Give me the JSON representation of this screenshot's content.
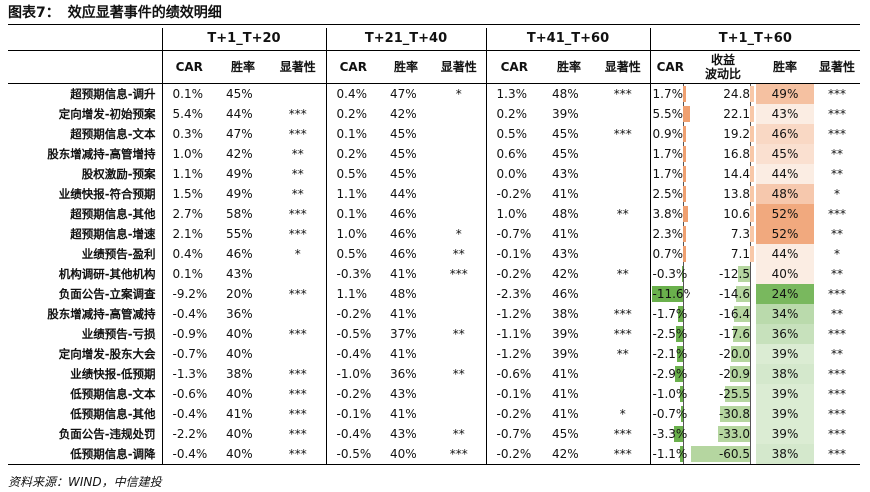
{
  "title": {
    "label": "图表7：",
    "text": "效应显著事件的绩效明细"
  },
  "source": "资料来源：WIND，中信建投",
  "groups": [
    "T+1_T+20",
    "T+21_T+40",
    "T+41_T+60",
    "T+1_T+60"
  ],
  "subheaders": {
    "car": "CAR",
    "win": "胜率",
    "sig": "显著性",
    "vol": "收益\n波动比"
  },
  "colors": {
    "pos_bar": "#f0a070",
    "neg_bar": "#6ab04c",
    "win_high": "#f0a070",
    "win_low": "#6ab04c"
  },
  "rows": [
    {
      "name": "超预期信息-调升",
      "g1": [
        "0.1%",
        "45%",
        ""
      ],
      "g2": [
        "0.4%",
        "47%",
        "*"
      ],
      "g3": [
        "1.3%",
        "48%",
        "***"
      ],
      "g4": {
        "car": "1.7%",
        "car_v": 1.7,
        "vol": "24.8",
        "vol_v": 24.8,
        "win": "49%",
        "win_v": 49,
        "sig": "***"
      }
    },
    {
      "name": "定向增发-初始预案",
      "g1": [
        "5.4%",
        "44%",
        "***"
      ],
      "g2": [
        "0.2%",
        "42%",
        ""
      ],
      "g3": [
        "0.2%",
        "39%",
        ""
      ],
      "g4": {
        "car": "5.5%",
        "car_v": 5.5,
        "vol": "22.1",
        "vol_v": 22.1,
        "win": "43%",
        "win_v": 43,
        "sig": "***"
      }
    },
    {
      "name": "超预期信息-文本",
      "g1": [
        "0.3%",
        "47%",
        "***"
      ],
      "g2": [
        "0.1%",
        "45%",
        ""
      ],
      "g3": [
        "0.5%",
        "45%",
        "***"
      ],
      "g4": {
        "car": "0.9%",
        "car_v": 0.9,
        "vol": "19.2",
        "vol_v": 19.2,
        "win": "46%",
        "win_v": 46,
        "sig": "***"
      }
    },
    {
      "name": "股东增减持-高管增持",
      "g1": [
        "1.0%",
        "42%",
        "**"
      ],
      "g2": [
        "0.2%",
        "45%",
        ""
      ],
      "g3": [
        "0.6%",
        "45%",
        ""
      ],
      "g4": {
        "car": "1.7%",
        "car_v": 1.7,
        "vol": "16.8",
        "vol_v": 16.8,
        "win": "45%",
        "win_v": 45,
        "sig": "**"
      }
    },
    {
      "name": "股权激励-预案",
      "g1": [
        "1.1%",
        "49%",
        "**"
      ],
      "g2": [
        "0.5%",
        "45%",
        ""
      ],
      "g3": [
        "0.0%",
        "43%",
        ""
      ],
      "g4": {
        "car": "1.7%",
        "car_v": 1.7,
        "vol": "14.4",
        "vol_v": 14.4,
        "win": "44%",
        "win_v": 44,
        "sig": "**"
      }
    },
    {
      "name": "业绩快报-符合预期",
      "g1": [
        "1.5%",
        "49%",
        "**"
      ],
      "g2": [
        "1.1%",
        "44%",
        ""
      ],
      "g3": [
        "-0.2%",
        "41%",
        ""
      ],
      "g4": {
        "car": "2.5%",
        "car_v": 2.5,
        "vol": "13.8",
        "vol_v": 13.8,
        "win": "48%",
        "win_v": 48,
        "sig": "*"
      }
    },
    {
      "name": "超预期信息-其他",
      "g1": [
        "2.7%",
        "58%",
        "***"
      ],
      "g2": [
        "0.1%",
        "46%",
        ""
      ],
      "g3": [
        "1.0%",
        "48%",
        "**"
      ],
      "g4": {
        "car": "3.8%",
        "car_v": 3.8,
        "vol": "10.6",
        "vol_v": 10.6,
        "win": "52%",
        "win_v": 52,
        "sig": "***"
      }
    },
    {
      "name": "超预期信息-增速",
      "g1": [
        "2.1%",
        "55%",
        "***"
      ],
      "g2": [
        "1.0%",
        "46%",
        "*"
      ],
      "g3": [
        "-0.7%",
        "41%",
        ""
      ],
      "g4": {
        "car": "2.3%",
        "car_v": 2.3,
        "vol": "7.3",
        "vol_v": 7.3,
        "win": "52%",
        "win_v": 52,
        "sig": "**"
      }
    },
    {
      "name": "业绩预告-盈利",
      "g1": [
        "0.4%",
        "46%",
        "*"
      ],
      "g2": [
        "0.5%",
        "46%",
        "**"
      ],
      "g3": [
        "-0.1%",
        "43%",
        ""
      ],
      "g4": {
        "car": "0.7%",
        "car_v": 0.7,
        "vol": "7.1",
        "vol_v": 7.1,
        "win": "44%",
        "win_v": 44,
        "sig": "*"
      }
    },
    {
      "name": "机构调研-其他机构",
      "g1": [
        "0.1%",
        "43%",
        ""
      ],
      "g2": [
        "-0.3%",
        "41%",
        "***"
      ],
      "g3": [
        "-0.2%",
        "42%",
        "**"
      ],
      "g4": {
        "car": "-0.3%",
        "car_v": -0.3,
        "vol": "-12.5",
        "vol_v": -12.5,
        "win": "40%",
        "win_v": 40,
        "sig": "**"
      }
    },
    {
      "name": "负面公告-立案调查",
      "g1": [
        "-9.2%",
        "20%",
        "***"
      ],
      "g2": [
        "1.1%",
        "48%",
        ""
      ],
      "g3": [
        "-2.3%",
        "46%",
        ""
      ],
      "g4": {
        "car": "-11.6%",
        "car_v": -11.6,
        "vol": "-14.6",
        "vol_v": -14.6,
        "win": "24%",
        "win_v": 24,
        "sig": "***"
      }
    },
    {
      "name": "股东增减持-高管减持",
      "g1": [
        "-0.4%",
        "36%",
        ""
      ],
      "g2": [
        "-0.2%",
        "41%",
        ""
      ],
      "g3": [
        "-1.2%",
        "38%",
        "***"
      ],
      "g4": {
        "car": "-1.7%",
        "car_v": -1.7,
        "vol": "-16.4",
        "vol_v": -16.4,
        "win": "34%",
        "win_v": 34,
        "sig": "**"
      }
    },
    {
      "name": "业绩预告-亏损",
      "g1": [
        "-0.9%",
        "40%",
        "***"
      ],
      "g2": [
        "-0.5%",
        "37%",
        "**"
      ],
      "g3": [
        "-1.1%",
        "39%",
        "***"
      ],
      "g4": {
        "car": "-2.5%",
        "car_v": -2.5,
        "vol": "-17.6",
        "vol_v": -17.6,
        "win": "36%",
        "win_v": 36,
        "sig": "***"
      }
    },
    {
      "name": "定向增发-股东大会",
      "g1": [
        "-0.7%",
        "40%",
        ""
      ],
      "g2": [
        "-0.4%",
        "41%",
        ""
      ],
      "g3": [
        "-1.2%",
        "39%",
        "**"
      ],
      "g4": {
        "car": "-2.1%",
        "car_v": -2.1,
        "vol": "-20.0",
        "vol_v": -20.0,
        "win": "39%",
        "win_v": 39,
        "sig": "**"
      }
    },
    {
      "name": "业绩快报-低预期",
      "g1": [
        "-1.3%",
        "38%",
        "***"
      ],
      "g2": [
        "-1.0%",
        "36%",
        "**"
      ],
      "g3": [
        "-0.6%",
        "41%",
        ""
      ],
      "g4": {
        "car": "-2.9%",
        "car_v": -2.9,
        "vol": "-20.9",
        "vol_v": -20.9,
        "win": "38%",
        "win_v": 38,
        "sig": "***"
      }
    },
    {
      "name": "低预期信息-文本",
      "g1": [
        "-0.6%",
        "40%",
        "***"
      ],
      "g2": [
        "-0.2%",
        "43%",
        ""
      ],
      "g3": [
        "-0.1%",
        "41%",
        ""
      ],
      "g4": {
        "car": "-1.0%",
        "car_v": -1.0,
        "vol": "-25.5",
        "vol_v": -25.5,
        "win": "39%",
        "win_v": 39,
        "sig": "***"
      }
    },
    {
      "name": "低预期信息-其他",
      "g1": [
        "-0.4%",
        "41%",
        "***"
      ],
      "g2": [
        "-0.1%",
        "41%",
        ""
      ],
      "g3": [
        "-0.2%",
        "41%",
        "*"
      ],
      "g4": {
        "car": "-0.7%",
        "car_v": -0.7,
        "vol": "-30.8",
        "vol_v": -30.8,
        "win": "39%",
        "win_v": 39,
        "sig": "***"
      }
    },
    {
      "name": "负面公告-违规处罚",
      "g1": [
        "-2.2%",
        "40%",
        "***"
      ],
      "g2": [
        "-0.4%",
        "43%",
        "**"
      ],
      "g3": [
        "-0.7%",
        "45%",
        "***"
      ],
      "g4": {
        "car": "-3.3%",
        "car_v": -3.3,
        "vol": "-33.0",
        "vol_v": -33.0,
        "win": "39%",
        "win_v": 39,
        "sig": "***"
      }
    },
    {
      "name": "低预期信息-调降",
      "g1": [
        "-0.4%",
        "40%",
        "***"
      ],
      "g2": [
        "-0.5%",
        "40%",
        "***"
      ],
      "g3": [
        "-0.2%",
        "42%",
        "***"
      ],
      "g4": {
        "car": "-1.1%",
        "car_v": -1.1,
        "vol": "-60.5",
        "vol_v": -60.5,
        "win": "38%",
        "win_v": 38,
        "sig": "***"
      }
    }
  ]
}
